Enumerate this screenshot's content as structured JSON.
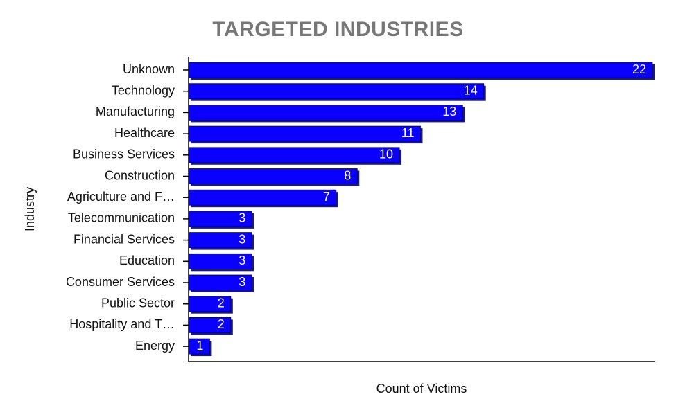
{
  "chart_data": {
    "type": "bar",
    "orientation": "horizontal",
    "title": "TARGETED INDUSTRIES",
    "xlabel": "Count of Victims",
    "ylabel": "Industry",
    "categories": [
      "Unknown",
      "Technology",
      "Manufacturing",
      "Healthcare",
      "Business Services",
      "Construction",
      "Agriculture and F…",
      "Telecommunication",
      "Financial Services",
      "Education",
      "Consumer Services",
      "Public Sector",
      "Hospitality and T…",
      "Energy"
    ],
    "values": [
      22,
      14,
      13,
      11,
      10,
      8,
      7,
      3,
      3,
      3,
      3,
      2,
      2,
      1
    ],
    "xlim": [
      0,
      22
    ],
    "grid": false,
    "colors": {
      "bar": "#0a00ff",
      "bar_shadow": "#1c1c6e",
      "title": "#777777"
    }
  }
}
